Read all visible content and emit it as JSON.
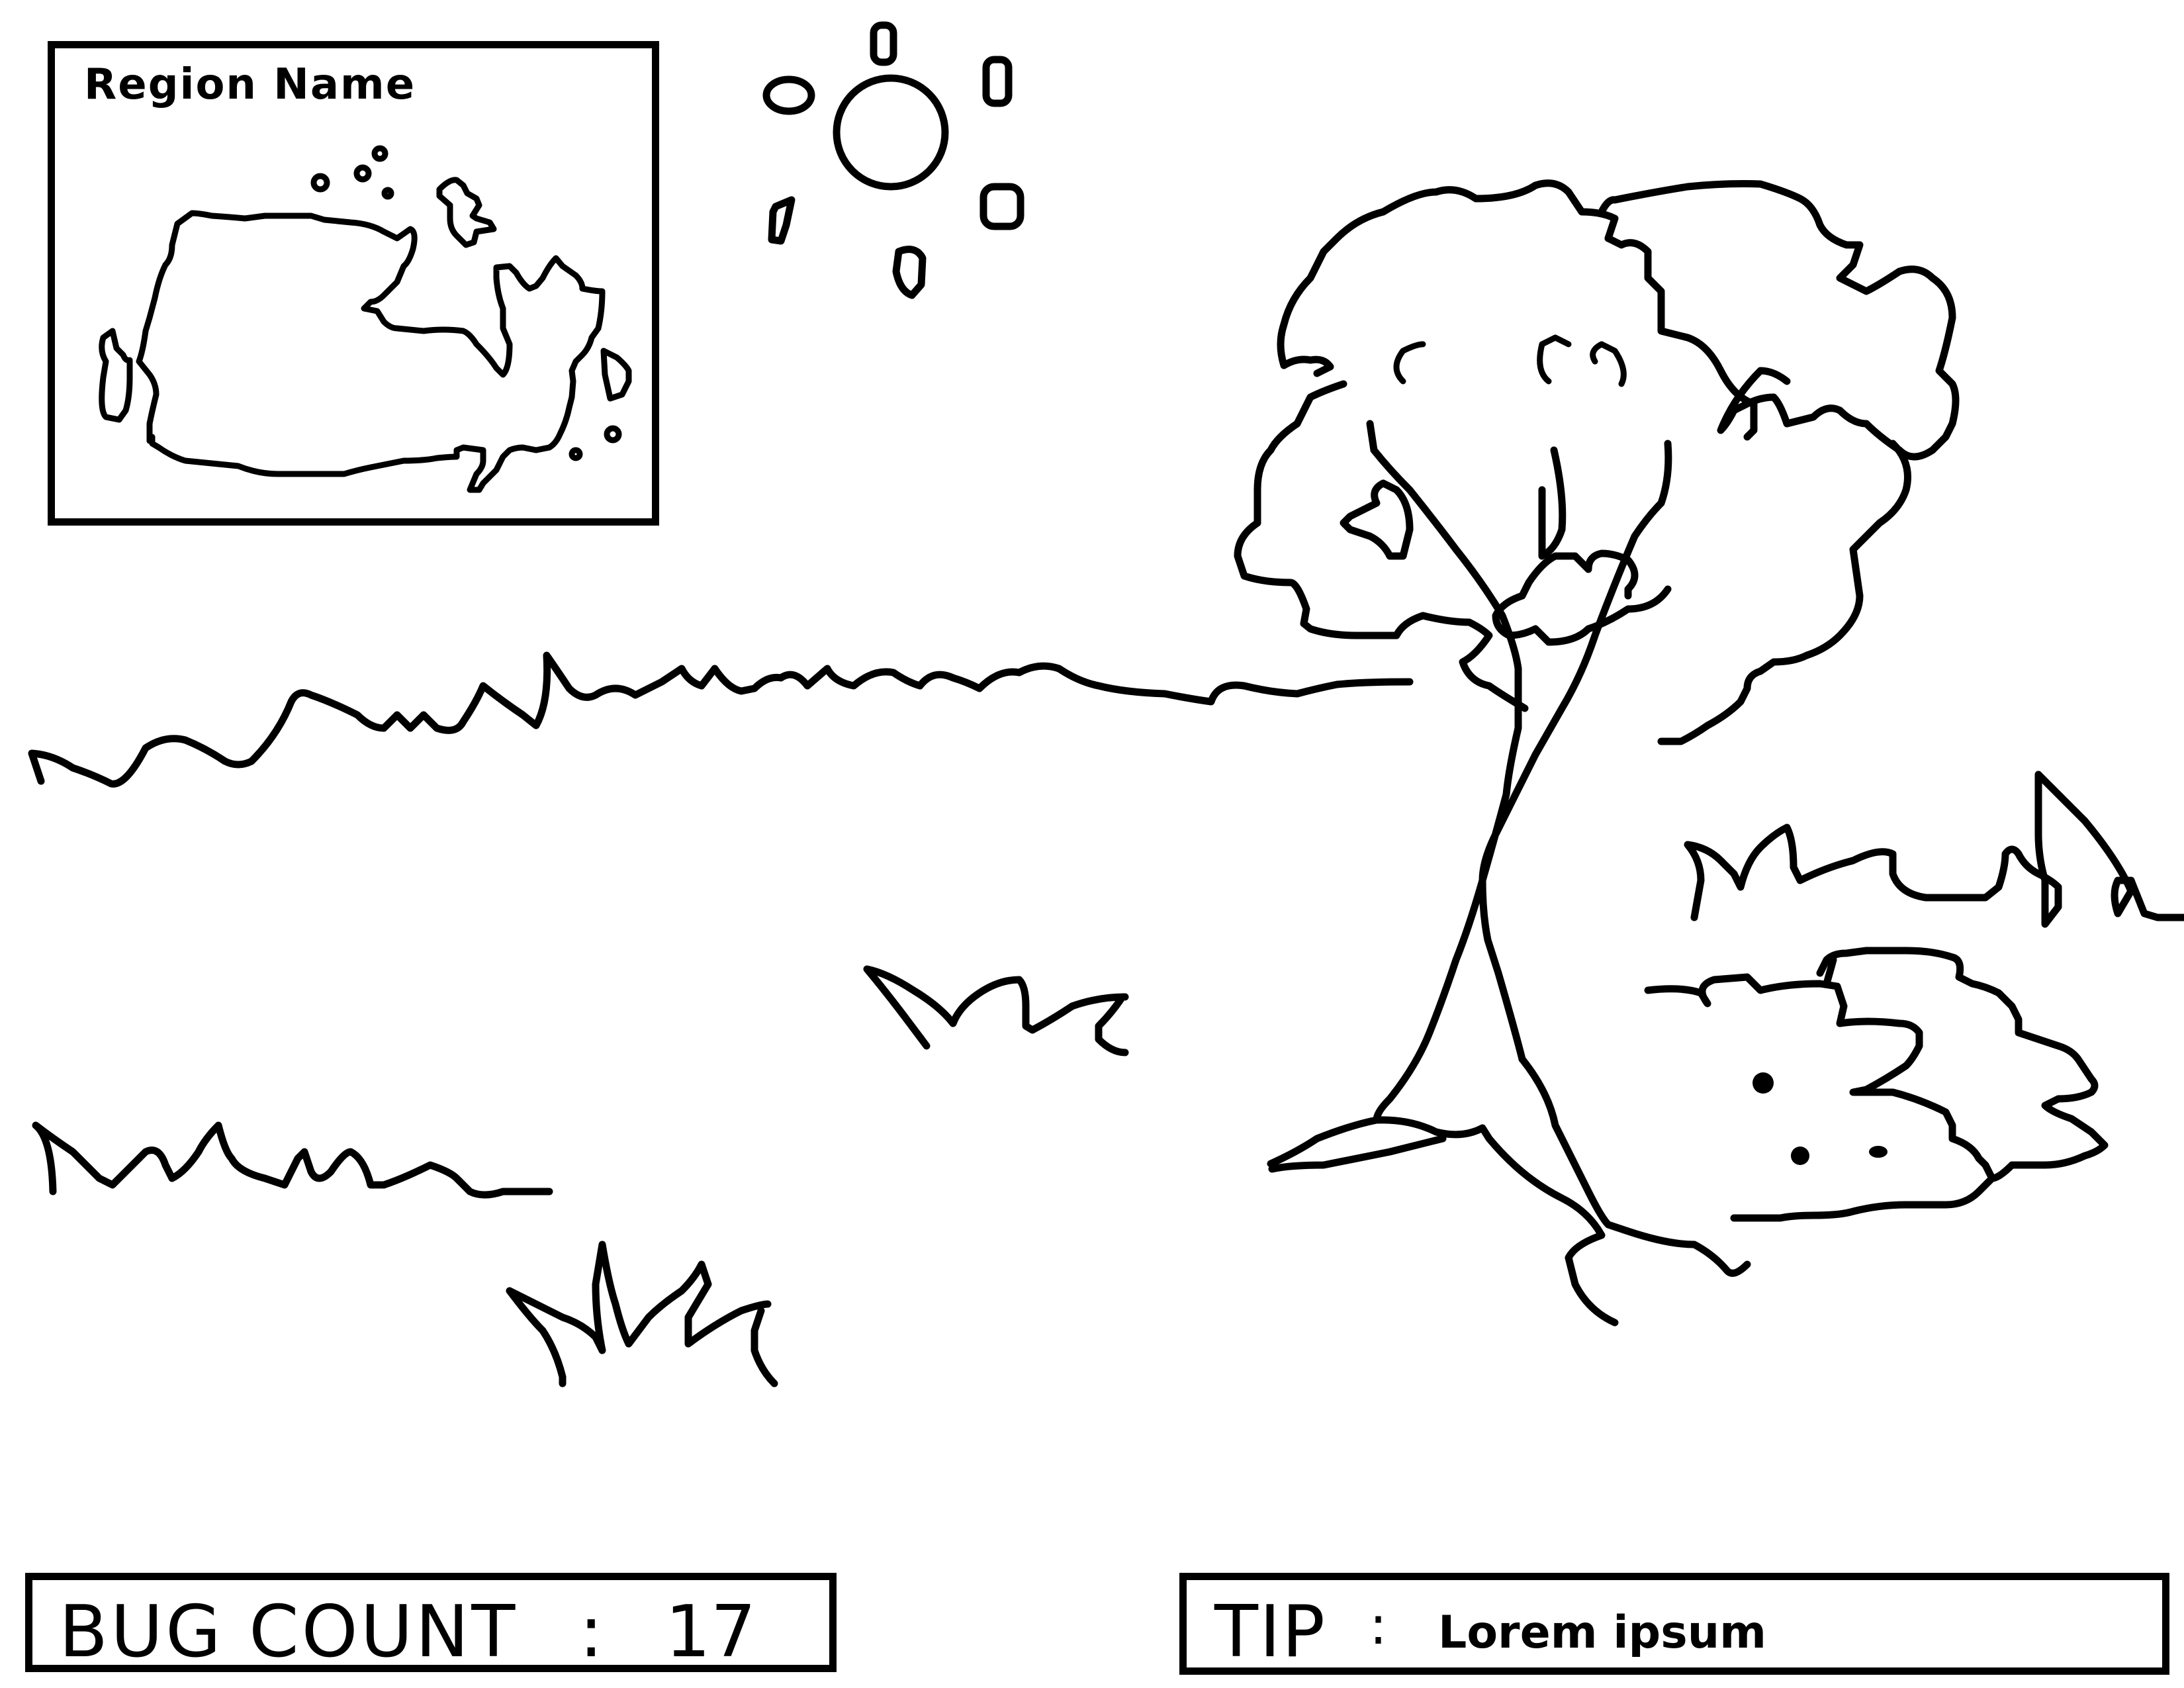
{
  "minimap": {
    "title": "Region Name",
    "region_icon": "canada-map-icon"
  },
  "hud": {
    "bug_count_label": "BUG COUNT",
    "bug_count_separator": ":",
    "bug_count_value": "17",
    "tip_label": "TIP",
    "tip_separator": ":",
    "tip_text": "Lorem ipsum"
  },
  "scene_objects": [
    "sun-icon",
    "tree",
    "bush",
    "grass-tufts",
    "ground-horizon"
  ]
}
